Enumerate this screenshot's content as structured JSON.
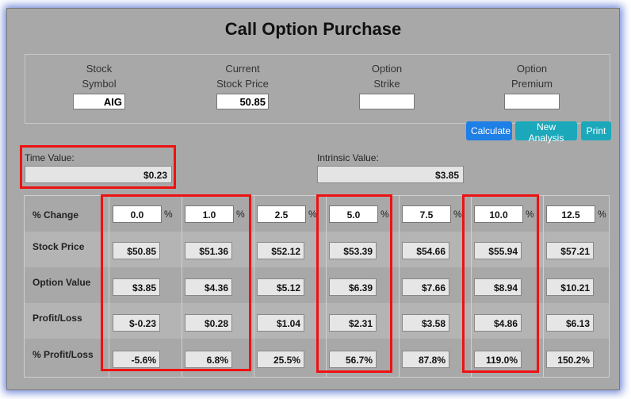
{
  "title": "Call Option Purchase",
  "fields": [
    {
      "line1": "Stock",
      "line2": "Symbol",
      "value": "AIG"
    },
    {
      "line1": "Current",
      "line2": "Stock Price",
      "value": "50.85"
    },
    {
      "line1": "Option",
      "line2": "Strike",
      "value": ""
    },
    {
      "line1": "Option",
      "line2": "Premium",
      "value": ""
    }
  ],
  "buttons": {
    "calculate": "Calculate",
    "new_analysis": "New Analysis",
    "print": "Print"
  },
  "time_value": {
    "label": "Time Value:",
    "value": "$0.23"
  },
  "intrinsic_value": {
    "label": "Intrinsic Value:",
    "value": "$3.85"
  },
  "row_labels": {
    "pct_change": "% Change",
    "stock_price": "Stock Price",
    "option_value": "Option Value",
    "profit_loss": "Profit/Loss",
    "pct_profit_loss": "% Profit/Loss"
  },
  "pct_symbol": "%",
  "columns": [
    {
      "change": "0.0",
      "stock_price": "$50.85",
      "option_value": "$3.85",
      "profit_loss": "$-0.23",
      "pct_profit_loss": "-5.6%"
    },
    {
      "change": "1.0",
      "stock_price": "$51.36",
      "option_value": "$4.36",
      "profit_loss": "$0.28",
      "pct_profit_loss": "6.8%"
    },
    {
      "change": "2.5",
      "stock_price": "$52.12",
      "option_value": "$5.12",
      "profit_loss": "$1.04",
      "pct_profit_loss": "25.5%"
    },
    {
      "change": "5.0",
      "stock_price": "$53.39",
      "option_value": "$6.39",
      "profit_loss": "$2.31",
      "pct_profit_loss": "56.7%"
    },
    {
      "change": "7.5",
      "stock_price": "$54.66",
      "option_value": "$7.66",
      "profit_loss": "$3.58",
      "pct_profit_loss": "87.8%"
    },
    {
      "change": "10.0",
      "stock_price": "$55.94",
      "option_value": "$8.94",
      "profit_loss": "$4.86",
      "pct_profit_loss": "119.0%"
    },
    {
      "change": "12.5",
      "stock_price": "$57.21",
      "option_value": "$10.21",
      "profit_loss": "$6.13",
      "pct_profit_loss": "150.2%"
    }
  ],
  "colors": {
    "highlight": "#ee1111",
    "calculate_button": "#1e7fe6",
    "secondary_buttons": "#1ba8bb",
    "panel_background": "#a8a8a8"
  }
}
